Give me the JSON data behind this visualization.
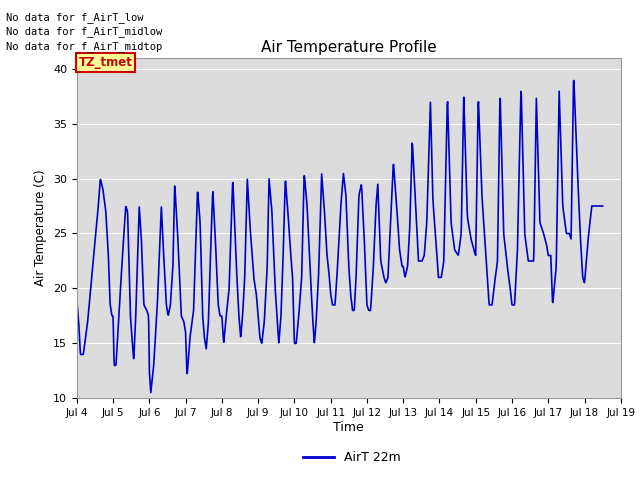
{
  "title": "Air Temperature Profile",
  "xlabel": "Time",
  "ylabel": "Air Temperature (C)",
  "legend_label": "AirT 22m",
  "ylim": [
    10,
    41
  ],
  "yticks": [
    10,
    15,
    20,
    25,
    30,
    35,
    40
  ],
  "line_color": "#0000CC",
  "annotations": [
    "No data for f_AirT_low",
    "No data for f_AirT_midlow",
    "No data for f_AirT_midtop"
  ],
  "tz_label": "TZ_tmet",
  "x_tick_labels": [
    "Jul 4",
    "Jul 5",
    "Jul 6",
    "Jul 7",
    "Jul 8",
    "Jul 9",
    "Jul 10",
    "Jul 11",
    "Jul 12",
    "Jul 13",
    "Jul 14",
    "Jul 15",
    "Jul 16",
    "Jul 17",
    "Jul 18",
    "Jul 19"
  ],
  "xlim": [
    4.0,
    19.0
  ],
  "control_points": [
    [
      4.0,
      19.0
    ],
    [
      4.06,
      16.5
    ],
    [
      4.1,
      14.0
    ],
    [
      4.18,
      14.0
    ],
    [
      4.3,
      17.0
    ],
    [
      4.45,
      22.5
    ],
    [
      4.58,
      27.0
    ],
    [
      4.65,
      30.0
    ],
    [
      4.72,
      29.0
    ],
    [
      4.8,
      27.0
    ],
    [
      4.87,
      23.0
    ],
    [
      4.92,
      18.5
    ],
    [
      4.97,
      17.5
    ],
    [
      5.0,
      17.5
    ],
    [
      5.03,
      13.0
    ],
    [
      5.08,
      13.0
    ],
    [
      5.15,
      17.0
    ],
    [
      5.25,
      22.5
    ],
    [
      5.35,
      27.5
    ],
    [
      5.4,
      27.0
    ],
    [
      5.48,
      17.5
    ],
    [
      5.52,
      15.5
    ],
    [
      5.57,
      13.5
    ],
    [
      5.62,
      17.0
    ],
    [
      5.67,
      22.0
    ],
    [
      5.72,
      27.5
    ],
    [
      5.78,
      24.5
    ],
    [
      5.85,
      18.5
    ],
    [
      5.93,
      18.0
    ],
    [
      5.98,
      17.5
    ],
    [
      6.0,
      12.5
    ],
    [
      6.04,
      10.5
    ],
    [
      6.12,
      13.0
    ],
    [
      6.22,
      18.5
    ],
    [
      6.33,
      27.5
    ],
    [
      6.38,
      24.0
    ],
    [
      6.47,
      18.5
    ],
    [
      6.52,
      17.5
    ],
    [
      6.58,
      18.5
    ],
    [
      6.65,
      22.0
    ],
    [
      6.7,
      29.5
    ],
    [
      6.78,
      25.0
    ],
    [
      6.88,
      17.5
    ],
    [
      6.95,
      17.0
    ],
    [
      7.0,
      16.0
    ],
    [
      7.04,
      12.0
    ],
    [
      7.12,
      15.5
    ],
    [
      7.22,
      18.0
    ],
    [
      7.33,
      29.0
    ],
    [
      7.4,
      26.0
    ],
    [
      7.47,
      17.5
    ],
    [
      7.52,
      15.5
    ],
    [
      7.57,
      14.5
    ],
    [
      7.63,
      17.0
    ],
    [
      7.68,
      22.5
    ],
    [
      7.75,
      29.0
    ],
    [
      7.82,
      24.5
    ],
    [
      7.9,
      18.5
    ],
    [
      7.95,
      17.5
    ],
    [
      8.0,
      17.5
    ],
    [
      8.05,
      15.0
    ],
    [
      8.12,
      17.5
    ],
    [
      8.2,
      20.0
    ],
    [
      8.3,
      30.0
    ],
    [
      8.4,
      22.0
    ],
    [
      8.47,
      17.5
    ],
    [
      8.52,
      15.5
    ],
    [
      8.57,
      17.5
    ],
    [
      8.63,
      21.0
    ],
    [
      8.7,
      30.0
    ],
    [
      8.78,
      25.5
    ],
    [
      8.88,
      21.0
    ],
    [
      8.95,
      19.5
    ],
    [
      9.0,
      17.5
    ],
    [
      9.05,
      15.5
    ],
    [
      9.1,
      15.0
    ],
    [
      9.17,
      17.0
    ],
    [
      9.25,
      22.0
    ],
    [
      9.3,
      30.0
    ],
    [
      9.38,
      27.0
    ],
    [
      9.47,
      20.0
    ],
    [
      9.52,
      17.5
    ],
    [
      9.57,
      15.0
    ],
    [
      9.63,
      17.5
    ],
    [
      9.68,
      22.0
    ],
    [
      9.75,
      30.0
    ],
    [
      9.82,
      27.0
    ],
    [
      9.9,
      23.0
    ],
    [
      9.95,
      21.0
    ],
    [
      10.0,
      15.0
    ],
    [
      10.05,
      15.0
    ],
    [
      10.12,
      17.5
    ],
    [
      10.2,
      21.0
    ],
    [
      10.27,
      30.5
    ],
    [
      10.35,
      27.5
    ],
    [
      10.43,
      22.0
    ],
    [
      10.5,
      17.5
    ],
    [
      10.55,
      15.0
    ],
    [
      10.6,
      17.0
    ],
    [
      10.67,
      21.5
    ],
    [
      10.75,
      30.5
    ],
    [
      10.82,
      27.5
    ],
    [
      10.9,
      23.0
    ],
    [
      10.95,
      21.5
    ],
    [
      11.0,
      19.5
    ],
    [
      11.05,
      18.5
    ],
    [
      11.12,
      18.5
    ],
    [
      11.18,
      21.5
    ],
    [
      11.28,
      27.5
    ],
    [
      11.35,
      30.5
    ],
    [
      11.42,
      28.5
    ],
    [
      11.5,
      22.0
    ],
    [
      11.55,
      19.5
    ],
    [
      11.6,
      18.0
    ],
    [
      11.65,
      18.0
    ],
    [
      11.7,
      21.0
    ],
    [
      11.78,
      28.5
    ],
    [
      11.85,
      29.5
    ],
    [
      11.92,
      25.0
    ],
    [
      11.97,
      21.0
    ],
    [
      12.0,
      18.5
    ],
    [
      12.05,
      18.0
    ],
    [
      12.1,
      18.0
    ],
    [
      12.17,
      21.5
    ],
    [
      12.25,
      27.5
    ],
    [
      12.3,
      29.5
    ],
    [
      12.38,
      22.5
    ],
    [
      12.47,
      21.0
    ],
    [
      12.52,
      20.5
    ],
    [
      12.58,
      21.0
    ],
    [
      12.65,
      26.0
    ],
    [
      12.73,
      31.5
    ],
    [
      12.82,
      27.5
    ],
    [
      12.9,
      23.5
    ],
    [
      12.97,
      22.0
    ],
    [
      13.0,
      22.0
    ],
    [
      13.05,
      21.0
    ],
    [
      13.12,
      22.0
    ],
    [
      13.18,
      25.5
    ],
    [
      13.25,
      33.5
    ],
    [
      13.32,
      29.0
    ],
    [
      13.42,
      22.5
    ],
    [
      13.52,
      22.5
    ],
    [
      13.58,
      23.0
    ],
    [
      13.65,
      26.0
    ],
    [
      13.75,
      37.0
    ],
    [
      13.82,
      28.0
    ],
    [
      13.92,
      23.5
    ],
    [
      13.97,
      21.0
    ],
    [
      14.0,
      21.0
    ],
    [
      14.05,
      21.0
    ],
    [
      14.12,
      22.5
    ],
    [
      14.22,
      37.5
    ],
    [
      14.32,
      26.0
    ],
    [
      14.42,
      23.5
    ],
    [
      14.52,
      23.0
    ],
    [
      14.6,
      25.0
    ],
    [
      14.67,
      37.5
    ],
    [
      14.77,
      26.5
    ],
    [
      14.87,
      24.5
    ],
    [
      14.95,
      23.5
    ],
    [
      15.0,
      23.0
    ],
    [
      15.07,
      37.5
    ],
    [
      15.17,
      28.5
    ],
    [
      15.27,
      23.5
    ],
    [
      15.37,
      18.5
    ],
    [
      15.45,
      18.5
    ],
    [
      15.52,
      20.5
    ],
    [
      15.6,
      22.5
    ],
    [
      15.67,
      38.0
    ],
    [
      15.77,
      25.0
    ],
    [
      15.87,
      22.0
    ],
    [
      15.95,
      20.0
    ],
    [
      16.0,
      18.5
    ],
    [
      16.07,
      18.5
    ],
    [
      16.15,
      23.5
    ],
    [
      16.25,
      38.5
    ],
    [
      16.35,
      25.0
    ],
    [
      16.45,
      22.5
    ],
    [
      16.52,
      22.5
    ],
    [
      16.6,
      22.5
    ],
    [
      16.67,
      37.5
    ],
    [
      16.77,
      26.0
    ],
    [
      16.87,
      25.0
    ],
    [
      16.95,
      24.0
    ],
    [
      17.0,
      23.0
    ],
    [
      17.07,
      23.0
    ],
    [
      17.12,
      18.5
    ],
    [
      17.22,
      22.0
    ],
    [
      17.3,
      38.0
    ],
    [
      17.4,
      27.5
    ],
    [
      17.5,
      25.0
    ],
    [
      17.58,
      25.0
    ],
    [
      17.63,
      24.5
    ],
    [
      17.7,
      39.5
    ],
    [
      17.8,
      31.0
    ],
    [
      17.88,
      25.0
    ],
    [
      17.95,
      21.0
    ],
    [
      18.0,
      20.5
    ],
    [
      18.1,
      24.5
    ],
    [
      18.2,
      27.5
    ],
    [
      18.5,
      27.5
    ]
  ]
}
